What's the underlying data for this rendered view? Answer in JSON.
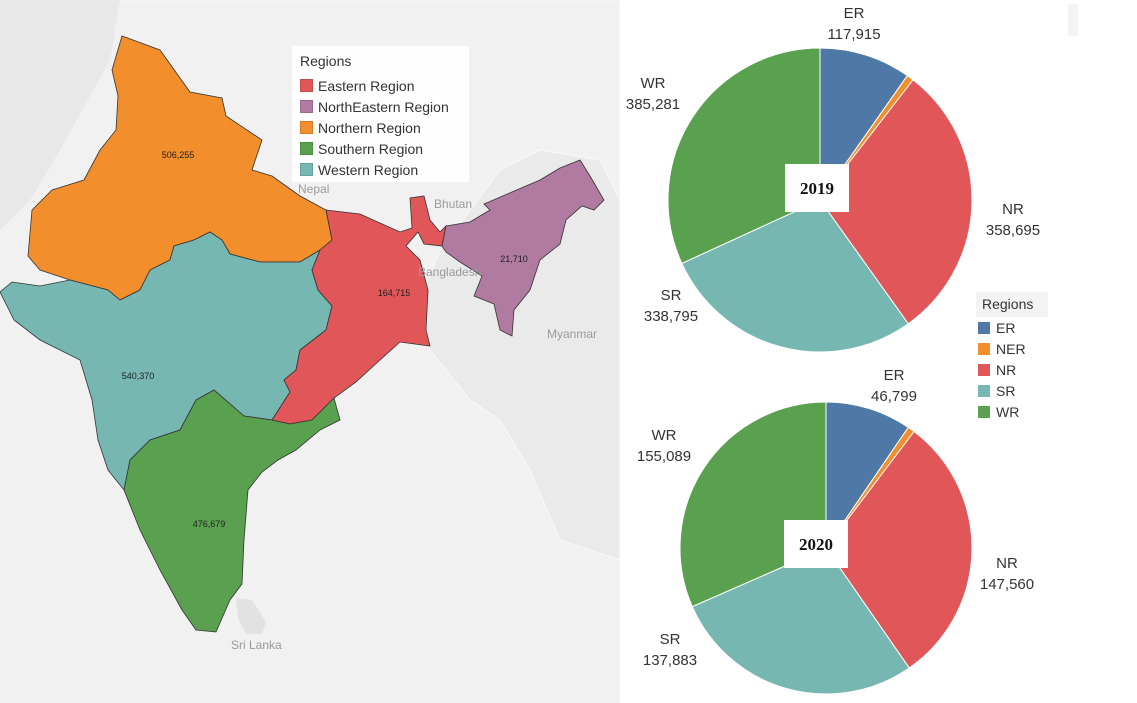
{
  "map": {
    "legend_title": "Regions",
    "legend": [
      {
        "label": "Eastern Region",
        "color": "#e15759"
      },
      {
        "label": "NorthEastern Region",
        "color": "#b07aa1"
      },
      {
        "label": "Northern Region",
        "color": "#f28e2b"
      },
      {
        "label": "Southern Region",
        "color": "#59a14f"
      },
      {
        "label": "Western Region",
        "color": "#76b7b2"
      }
    ],
    "region_values": {
      "northern": "506,255",
      "western": "540,370",
      "eastern": "164,715",
      "northeastern": "21,710",
      "southern": "476,679"
    },
    "place_labels": {
      "nepal": "Nepal",
      "bhutan": "Bhutan",
      "bangladesh": "Bangladesh",
      "myanmar": "Myanmar",
      "srilanka": "Sri Lanka"
    }
  },
  "pie_legend": {
    "title": "Regions",
    "items": [
      {
        "label": "ER",
        "color": "#4e79a7"
      },
      {
        "label": "NER",
        "color": "#f28e2b"
      },
      {
        "label": "NR",
        "color": "#e15759"
      },
      {
        "label": "SR",
        "color": "#76b7b2"
      },
      {
        "label": "WR",
        "color": "#59a14f"
      }
    ]
  },
  "chart_data": [
    {
      "type": "pie",
      "title": "2019",
      "categories": [
        "ER",
        "NER",
        "NR",
        "SR",
        "WR"
      ],
      "values": [
        117915,
        9000,
        358695,
        338795,
        385281
      ],
      "value_labels": [
        "117,915",
        "",
        "358,695",
        "338,795",
        "385,281"
      ],
      "colors": [
        "#4e79a7",
        "#f28e2b",
        "#e15759",
        "#76b7b2",
        "#59a14f"
      ]
    },
    {
      "type": "pie",
      "title": "2020",
      "categories": [
        "ER",
        "NER",
        "NR",
        "SR",
        "WR"
      ],
      "values": [
        46799,
        3800,
        147560,
        137883,
        155089
      ],
      "value_labels": [
        "46,799",
        "",
        "147,560",
        "137,883",
        "155,089"
      ],
      "colors": [
        "#4e79a7",
        "#f28e2b",
        "#e15759",
        "#76b7b2",
        "#59a14f"
      ]
    }
  ]
}
